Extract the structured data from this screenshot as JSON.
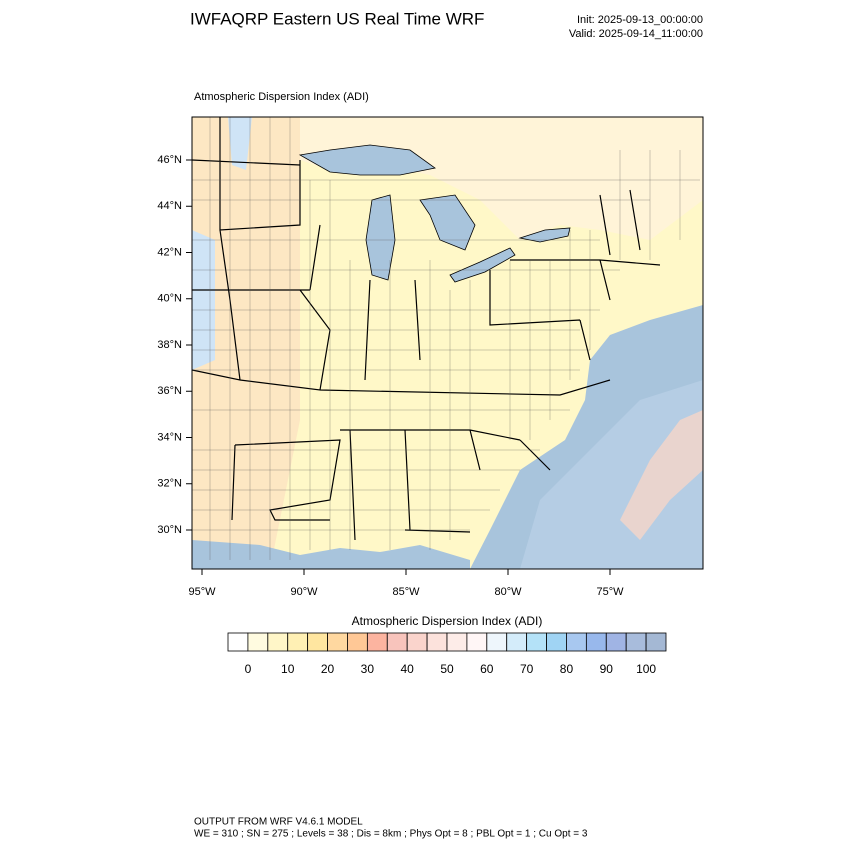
{
  "header": {
    "title": "IWFAQRP Eastern US Real Time WRF",
    "init": "Init: 2025-09-13_00:00:00",
    "valid": "Valid: 2025-09-14_11:00:00"
  },
  "map": {
    "label": "Atmospheric Dispersion Index   (ADI)",
    "lat_labels": [
      "46°N",
      "44°N",
      "42°N",
      "40°N",
      "38°N",
      "36°N",
      "34°N",
      "32°N",
      "30°N"
    ],
    "lon_labels": [
      "95°W",
      "90°W",
      "85°W",
      "80°W",
      "75°W"
    ]
  },
  "colorbar": {
    "title": "Atmospheric Dispersion Index  (ADI)",
    "ticks": [
      0,
      10,
      20,
      30,
      40,
      50,
      60,
      70,
      80,
      90,
      100
    ],
    "colors": [
      "#ffffff",
      "#fffbe0",
      "#fff6c8",
      "#fff0b4",
      "#ffe6a0",
      "#ffd8a0",
      "#ffc896",
      "#fcb4a0",
      "#f8c4bc",
      "#fad4cc",
      "#fce2dc",
      "#fdece8",
      "#fff6f6",
      "#eef6fc",
      "#d4ecfa",
      "#b4e2f8",
      "#a0d4f4",
      "#a8c8f0",
      "#98b8ec",
      "#a0b4e4",
      "#a8bcdc",
      "#a4b8d4"
    ]
  },
  "footer": {
    "line1": "OUTPUT FROM WRF V4.6.1 MODEL",
    "line2": "WE = 310 ; SN = 275 ; Levels = 38 ; Dis = 8km ; Phys Opt = 8 ; PBL Opt = 1 ; Cu Opt = 3"
  }
}
